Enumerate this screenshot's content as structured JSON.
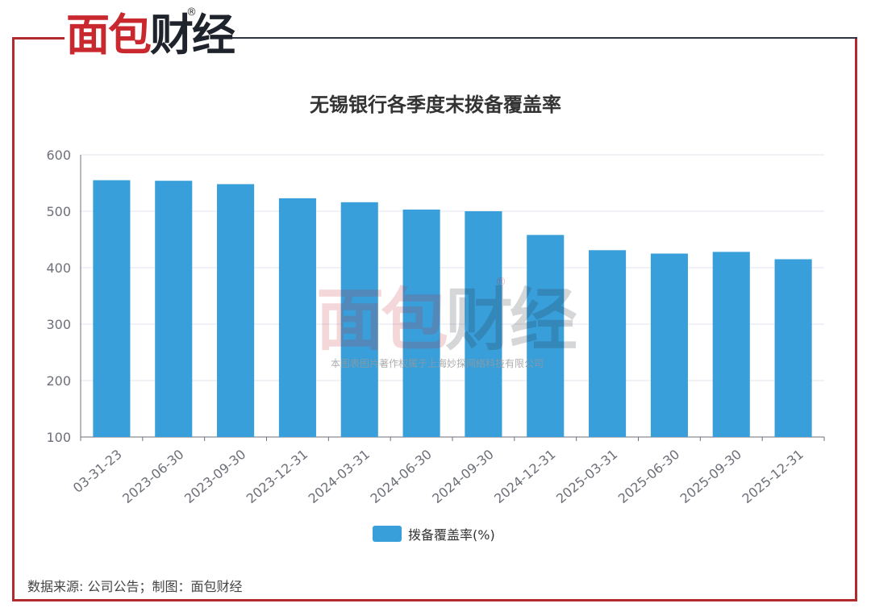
{
  "brand": {
    "logo_part1": "面包",
    "logo_part2": "财经",
    "registered_mark": "®",
    "brand_color": "#c8282e"
  },
  "watermark": {
    "logo_part1": "面包",
    "logo_part2": "财经",
    "registered_mark": "®",
    "copyright_text": "本图表图片著作权属于上海妙探网络科技有限公司"
  },
  "source_note": "数据来源: 公司公告；制图：面包财经",
  "chart_data": {
    "type": "bar",
    "title": "无锡银行各季度末拨备覆盖率",
    "xlabel": "",
    "ylabel": "",
    "categories": [
      "03-31-23",
      "2023-06-30",
      "2023-09-30",
      "2023-12-31",
      "2024-03-31",
      "2024-06-30",
      "2024-09-30",
      "2024-12-31",
      "2025-03-31",
      "2025-06-30",
      "2025-09-30",
      "2025-12-31"
    ],
    "series": [
      {
        "name": "拨备覆盖率(%)",
        "color": "#399fda",
        "values": [
          555,
          554,
          548,
          523,
          516,
          503,
          500,
          458,
          431,
          425,
          428,
          415
        ]
      }
    ],
    "ylim": [
      100,
      600
    ],
    "yticks": [
      100,
      200,
      300,
      400,
      500,
      600
    ],
    "grid": true,
    "legend_position": "bottom"
  }
}
